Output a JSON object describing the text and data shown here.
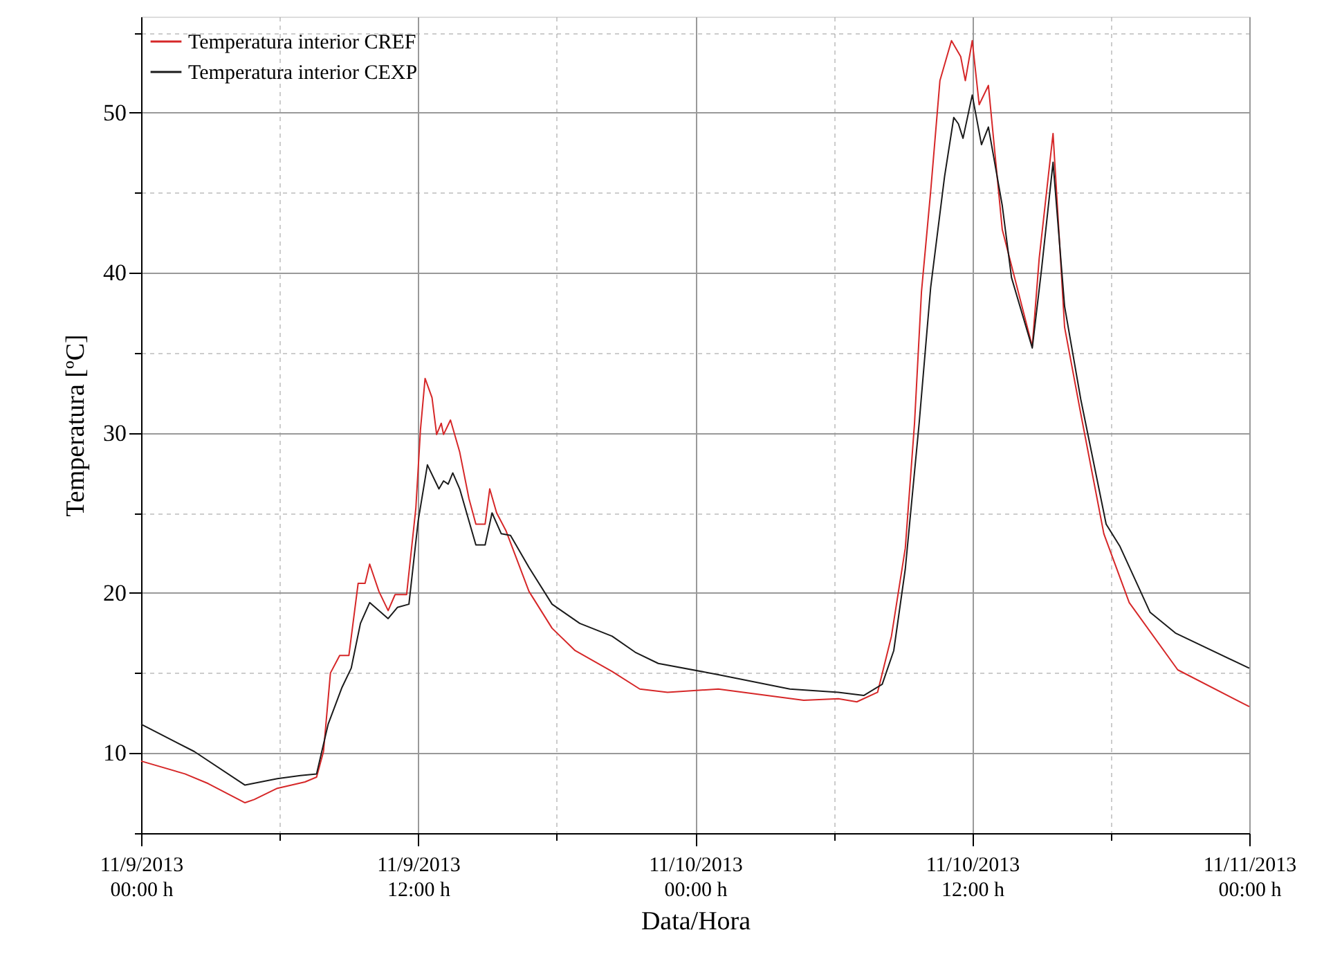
{
  "chart_data": {
    "type": "line",
    "xlabel": "Data/Hora",
    "ylabel": "Temperatura [ºC]",
    "xlim": [
      "2013-11-09T00:00",
      "2013-11-11T00:00"
    ],
    "xticks": [
      {
        "value": "2013-11-09T00:00",
        "label": "11/9/2013\n00:00 h"
      },
      {
        "value": "2013-11-09T06:00",
        "label": null
      },
      {
        "value": "2013-11-09T12:00",
        "label": "11/9/2013\n12:00 h"
      },
      {
        "value": "2013-11-09T18:00",
        "label": null
      },
      {
        "value": "2013-11-10T00:00",
        "label": "11/10/2013\n00:00 h"
      },
      {
        "value": "2013-11-10T06:00",
        "label": null
      },
      {
        "value": "2013-11-10T12:00",
        "label": "11/10/2013\n12:00 h"
      },
      {
        "value": "2013-11-10T18:00",
        "label": null
      },
      {
        "value": "2013-11-11T00:00",
        "label": "11/11/2013\n00:00 h"
      }
    ],
    "ylim": [
      5,
      56
    ],
    "yticks": [
      {
        "value": 5,
        "label": null
      },
      10,
      {
        "value": 15,
        "label": null
      },
      20,
      {
        "value": 25,
        "label": null
      },
      30,
      {
        "value": 35,
        "label": null
      },
      40,
      {
        "value": 45,
        "label": null
      },
      50,
      {
        "value": 55,
        "label": null
      }
    ],
    "grid": true,
    "legend": "top left",
    "line_style": "solid",
    "marker": "none",
    "series": [
      {
        "name": "Temperatura interior CREF",
        "color": "#d62728",
        "x": [
          "2013-11-09T00:00",
          "2013-11-09T01:54",
          "2013-11-09T02:54",
          "2013-11-09T04:30",
          "2013-11-09T04:54",
          "2013-11-09T05:54",
          "2013-11-09T07:06",
          "2013-11-09T07:36",
          "2013-11-09T07:54",
          "2013-11-09T08:12",
          "2013-11-09T08:36",
          "2013-11-09T09:00",
          "2013-11-09T09:24",
          "2013-11-09T09:42",
          "2013-11-09T09:54",
          "2013-11-09T10:18",
          "2013-11-09T10:42",
          "2013-11-09T11:00",
          "2013-11-09T11:30",
          "2013-11-09T11:54",
          "2013-11-09T12:06",
          "2013-11-09T12:18",
          "2013-11-09T12:36",
          "2013-11-09T12:48",
          "2013-11-09T13:00",
          "2013-11-09T13:06",
          "2013-11-09T13:24",
          "2013-11-09T13:48",
          "2013-11-09T14:12",
          "2013-11-09T14:30",
          "2013-11-09T14:54",
          "2013-11-09T15:06",
          "2013-11-09T15:24",
          "2013-11-09T15:48",
          "2013-11-09T16:48",
          "2013-11-09T17:48",
          "2013-11-09T18:48",
          "2013-11-09T20:24",
          "2013-11-09T21:36",
          "2013-11-09T22:48",
          "2013-11-10T01:00",
          "2013-11-10T04:42",
          "2013-11-10T06:12",
          "2013-11-10T07:00",
          "2013-11-10T07:54",
          "2013-11-10T08:30",
          "2013-11-10T09:06",
          "2013-11-10T09:30",
          "2013-11-10T09:48",
          "2013-11-10T10:12",
          "2013-11-10T10:36",
          "2013-11-10T11:06",
          "2013-11-10T11:30",
          "2013-11-10T11:42",
          "2013-11-10T12:00",
          "2013-11-10T12:18",
          "2013-11-10T12:42",
          "2013-11-10T13:18",
          "2013-11-10T14:36",
          "2013-11-10T14:54",
          "2013-11-10T15:30",
          "2013-11-10T16:00",
          "2013-11-10T16:42",
          "2013-11-10T17:42",
          "2013-11-10T18:48",
          "2013-11-10T20:54",
          "2013-11-11T00:00"
        ],
        "values": [
          9.5,
          8.7,
          8.1,
          6.9,
          7.1,
          7.8,
          8.2,
          8.5,
          10.1,
          15.0,
          16.1,
          16.1,
          20.6,
          20.6,
          21.8,
          20.1,
          18.9,
          19.9,
          19.9,
          25.3,
          30.2,
          33.4,
          32.2,
          29.9,
          30.6,
          29.9,
          30.8,
          28.8,
          25.9,
          24.3,
          24.3,
          26.5,
          25.0,
          23.9,
          20.1,
          17.8,
          16.4,
          15.1,
          14.0,
          13.8,
          14.0,
          13.3,
          13.4,
          13.2,
          13.8,
          17.3,
          22.8,
          30.6,
          38.8,
          45.1,
          52.0,
          54.5,
          53.5,
          52.0,
          54.5,
          50.5,
          51.7,
          42.7,
          35.4,
          40.9,
          48.7,
          36.6,
          31.2,
          23.7,
          19.4,
          15.2,
          12.9
        ]
      },
      {
        "name": "Temperatura interior CEXP",
        "color": "#1a1a1a",
        "x": [
          "2013-11-09T00:00",
          "2013-11-09T02:18",
          "2013-11-09T04:30",
          "2013-11-09T05:54",
          "2013-11-09T06:54",
          "2013-11-09T07:36",
          "2013-11-09T08:06",
          "2013-11-09T08:42",
          "2013-11-09T09:06",
          "2013-11-09T09:30",
          "2013-11-09T09:54",
          "2013-11-09T10:42",
          "2013-11-09T11:06",
          "2013-11-09T11:36",
          "2013-11-09T12:00",
          "2013-11-09T12:24",
          "2013-11-09T12:54",
          "2013-11-09T13:06",
          "2013-11-09T13:18",
          "2013-11-09T13:30",
          "2013-11-09T13:48",
          "2013-11-09T14:30",
          "2013-11-09T14:54",
          "2013-11-09T15:12",
          "2013-11-09T15:36",
          "2013-11-09T16:00",
          "2013-11-09T16:48",
          "2013-11-09T17:48",
          "2013-11-09T19:00",
          "2013-11-09T20:24",
          "2013-11-09T21:24",
          "2013-11-09T22:24",
          "2013-11-10T01:00",
          "2013-11-10T04:06",
          "2013-11-10T06:12",
          "2013-11-10T07:18",
          "2013-11-10T08:06",
          "2013-11-10T08:36",
          "2013-11-10T09:06",
          "2013-11-10T09:42",
          "2013-11-10T10:12",
          "2013-11-10T10:48",
          "2013-11-10T11:12",
          "2013-11-10T11:24",
          "2013-11-10T11:36",
          "2013-11-10T12:00",
          "2013-11-10T12:24",
          "2013-11-10T12:42",
          "2013-11-10T13:18",
          "2013-11-10T13:42",
          "2013-11-10T14:36",
          "2013-11-10T15:00",
          "2013-11-10T15:30",
          "2013-11-10T16:00",
          "2013-11-10T16:42",
          "2013-11-10T17:48",
          "2013-11-10T18:24",
          "2013-11-10T19:42",
          "2013-11-10T20:48",
          "2013-11-11T00:00"
        ],
        "values": [
          11.8,
          10.1,
          8.0,
          8.4,
          8.6,
          8.7,
          11.8,
          14.1,
          15.3,
          18.1,
          19.4,
          18.4,
          19.1,
          19.3,
          24.5,
          28.0,
          26.5,
          27.0,
          26.8,
          27.5,
          26.5,
          23.0,
          23.0,
          25.0,
          23.7,
          23.6,
          21.6,
          19.3,
          18.1,
          17.3,
          16.3,
          15.6,
          14.9,
          14.0,
          13.8,
          13.6,
          14.3,
          16.4,
          21.5,
          30.6,
          39.1,
          46.0,
          49.7,
          49.3,
          48.4,
          51.1,
          48.0,
          49.1,
          44.2,
          39.7,
          35.3,
          40.2,
          46.9,
          37.9,
          32.1,
          24.3,
          22.9,
          18.8,
          17.5,
          15.3
        ]
      }
    ]
  }
}
